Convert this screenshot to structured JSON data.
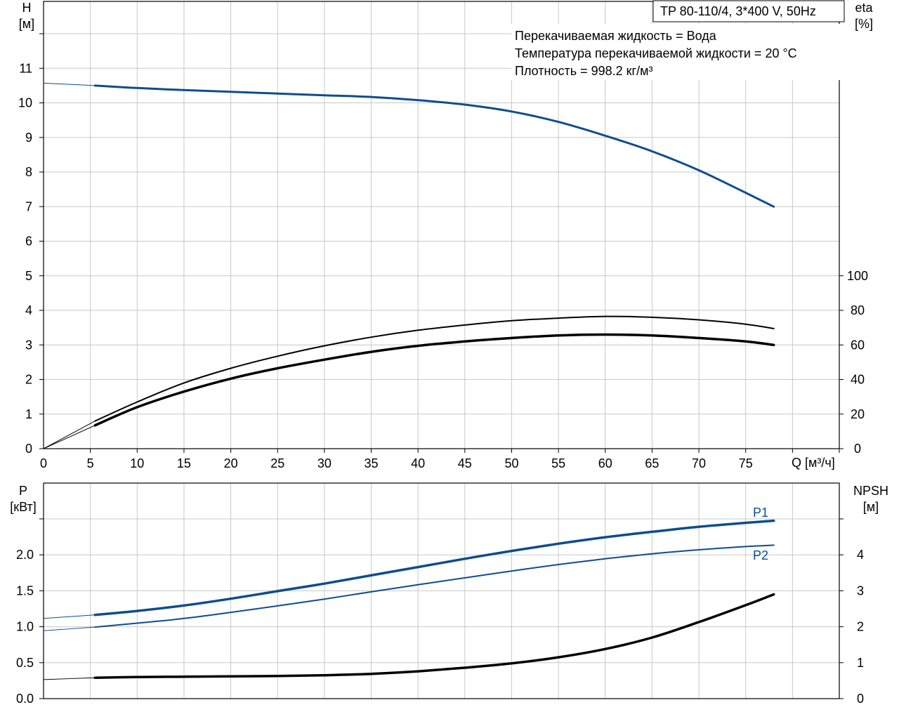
{
  "title_box": "TP 80-110/4, 3*400 V, 50Hz",
  "info_lines": [
    "Перекачиваемая жидкость = Вода",
    "Температура перекачиваемой жидкости = 20 °C",
    "Плотность = 998.2 кг/м³"
  ],
  "colors": {
    "blue": "#0e4d8c",
    "black": "#000000",
    "grid": "#c8c8c8"
  },
  "chart_data": [
    {
      "type": "line",
      "name": "head-efficiency",
      "xlabel": "Q [м³/ч]",
      "ylabel_line1": "H",
      "ylabel_line2": "[м]",
      "y2label_line1": "eta",
      "y2label_line2": "[%]",
      "xlim": [
        0,
        85
      ],
      "ylim": [
        0,
        12
      ],
      "y2lim": [
        0,
        100
      ],
      "xticks": [
        "0",
        "5",
        "10",
        "15",
        "20",
        "25",
        "30",
        "35",
        "40",
        "45",
        "50",
        "55",
        "60",
        "65",
        "70",
        "75"
      ],
      "yticks": [
        "0",
        "1",
        "2",
        "3",
        "4",
        "5",
        "6",
        "7",
        "8",
        "9",
        "10",
        "11"
      ],
      "y2ticks": [
        "0",
        "20",
        "40",
        "60",
        "80",
        "100"
      ],
      "grid": true,
      "series": [
        {
          "axis": "left",
          "color": "#0e4d8c",
          "width": 3,
          "x": [
            5.5,
            10,
            15,
            20,
            25,
            30,
            35,
            40,
            45,
            50,
            55,
            60,
            65,
            70,
            75,
            78
          ],
          "y": [
            10.5,
            10.43,
            10.37,
            10.32,
            10.27,
            10.22,
            10.17,
            10.08,
            9.95,
            9.75,
            9.45,
            9.05,
            8.6,
            8.05,
            7.4,
            7.0
          ],
          "ext_x": [
            0,
            5.5
          ],
          "ext_y": [
            10.57,
            10.5
          ]
        },
        {
          "axis": "right",
          "color": "#000000",
          "width": 2,
          "x": [
            5.5,
            10,
            15,
            20,
            25,
            30,
            35,
            40,
            45,
            50,
            55,
            60,
            65,
            70,
            75,
            78
          ],
          "y": [
            16,
            27,
            38,
            46.5,
            53.5,
            59.5,
            64.5,
            68.5,
            71.5,
            74,
            75.5,
            76.5,
            76,
            74.5,
            72,
            69.5
          ],
          "ext_x": [
            0,
            5.5
          ],
          "ext_y": [
            0,
            16
          ]
        },
        {
          "axis": "right",
          "color": "#000000",
          "width": 3.5,
          "x": [
            5.5,
            10,
            15,
            20,
            25,
            30,
            35,
            40,
            45,
            50,
            55,
            60,
            65,
            70,
            75,
            78
          ],
          "y": [
            13.5,
            24,
            33,
            40.5,
            46.5,
            51.5,
            56,
            59.5,
            62,
            64,
            65.5,
            66,
            65.5,
            64,
            62,
            60
          ],
          "ext_x": [
            0,
            5.5
          ],
          "ext_y": [
            0,
            13.5
          ]
        }
      ]
    },
    {
      "type": "line",
      "name": "power-npsh",
      "ylabel_line1": "P",
      "ylabel_line2": "[кВт]",
      "y2label_line1": "NPSH",
      "y2label_line2": "[м]",
      "xlim": [
        0,
        85
      ],
      "ylim": [
        0,
        2.5
      ],
      "y2lim": [
        0,
        5
      ],
      "yticks": [
        "0.0",
        "0.5",
        "1.0",
        "1.5",
        "2.0"
      ],
      "yticks_values": [
        0,
        0.5,
        1.0,
        1.5,
        2.0
      ],
      "y2ticks": [
        "0",
        "1",
        "2",
        "3",
        "4"
      ],
      "y2ticks_values": [
        0,
        1,
        2,
        3,
        4
      ],
      "grid": true,
      "series": [
        {
          "name": "P1",
          "axis": "left",
          "color": "#0e4d8c",
          "width": 3.5,
          "x": [
            5.5,
            10,
            15,
            20,
            25,
            30,
            35,
            40,
            45,
            50,
            55,
            60,
            65,
            70,
            75,
            78
          ],
          "y": [
            1.165,
            1.22,
            1.295,
            1.39,
            1.495,
            1.6,
            1.715,
            1.83,
            1.945,
            2.055,
            2.155,
            2.245,
            2.32,
            2.39,
            2.445,
            2.475
          ],
          "ext_x": [
            0,
            5.5
          ],
          "ext_y": [
            1.115,
            1.165
          ]
        },
        {
          "name": "P2",
          "axis": "left",
          "color": "#0e4d8c",
          "width": 2,
          "x": [
            5.5,
            10,
            15,
            20,
            25,
            30,
            35,
            40,
            45,
            50,
            55,
            60,
            65,
            70,
            75,
            78
          ],
          "y": [
            0.995,
            1.05,
            1.115,
            1.2,
            1.29,
            1.385,
            1.485,
            1.585,
            1.68,
            1.775,
            1.865,
            1.945,
            2.015,
            2.07,
            2.115,
            2.135
          ],
          "ext_x": [
            0,
            5.5
          ],
          "ext_y": [
            0.945,
            0.995
          ]
        },
        {
          "axis": "right",
          "color": "#000000",
          "width": 3.5,
          "x": [
            5.5,
            10,
            15,
            20,
            25,
            30,
            35,
            40,
            45,
            50,
            55,
            60,
            65,
            70,
            75,
            78
          ],
          "y": [
            0.58,
            0.6,
            0.61,
            0.62,
            0.63,
            0.65,
            0.69,
            0.76,
            0.86,
            0.98,
            1.15,
            1.38,
            1.7,
            2.13,
            2.6,
            2.9
          ],
          "ext_x": [
            0,
            5.5
          ],
          "ext_y": [
            0.53,
            0.58
          ]
        }
      ]
    }
  ]
}
